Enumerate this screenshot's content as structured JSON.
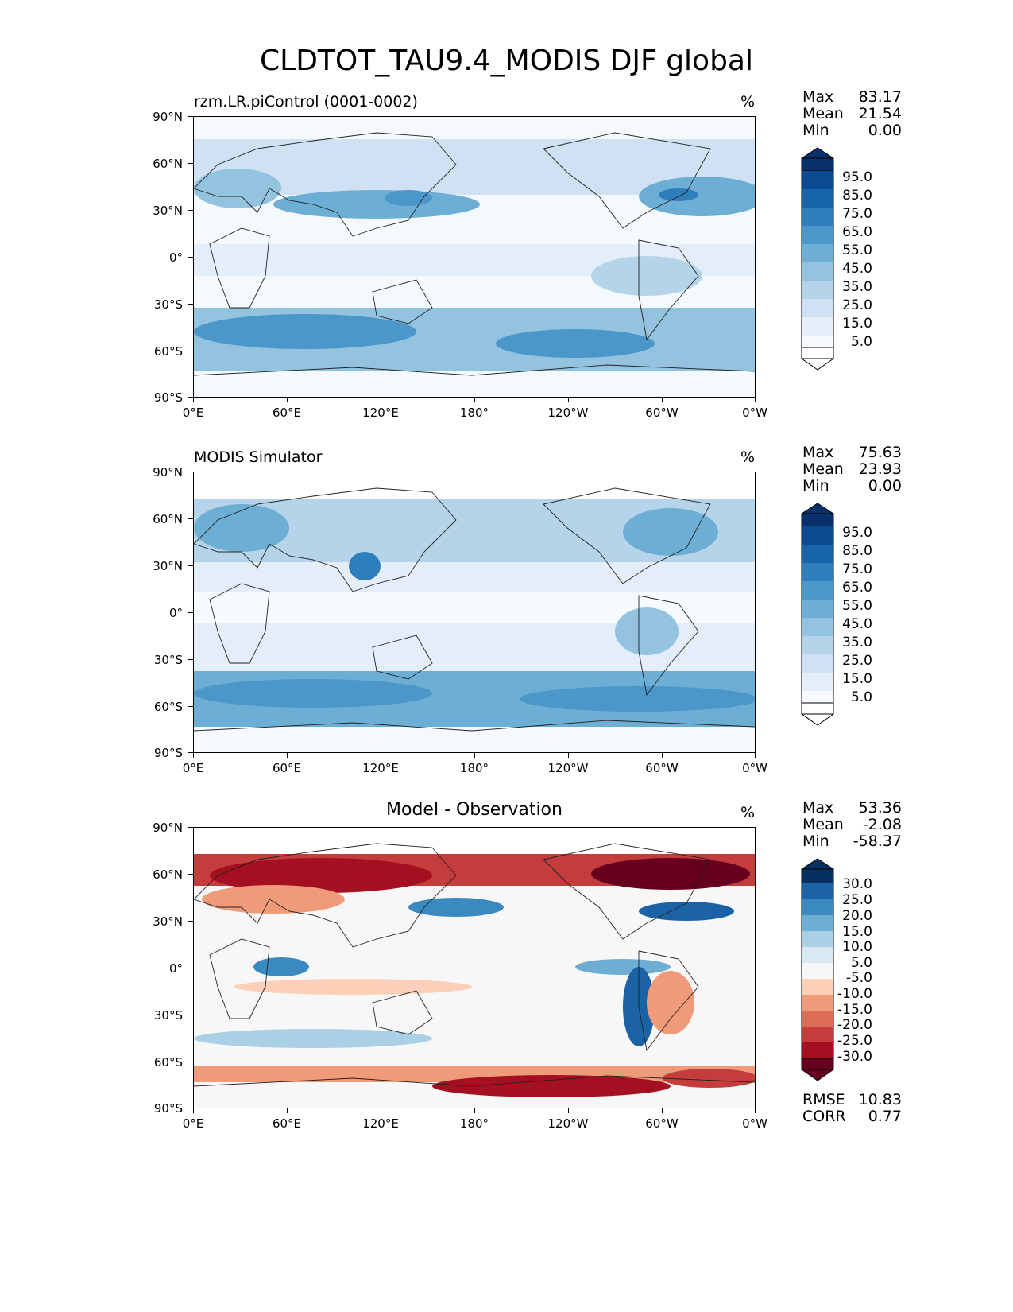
{
  "figure": {
    "title": "CLDTOT_TAU9.4_MODIS DJF global"
  },
  "panels": [
    {
      "title": "rzm.LR.piControl (0001-0002)",
      "unit": "%",
      "stats": [
        {
          "label": "Max",
          "value": "83.17"
        },
        {
          "label": "Mean",
          "value": "21.54"
        },
        {
          "label": "Min",
          "value": "0.00"
        }
      ],
      "colorbar": {
        "labels": [
          "95.0",
          "85.0",
          "75.0",
          "65.0",
          "55.0",
          "45.0",
          "35.0",
          "25.0",
          "15.0",
          "5.0"
        ]
      }
    },
    {
      "title": "MODIS Simulator",
      "unit": "%",
      "stats": [
        {
          "label": "Max",
          "value": "75.63"
        },
        {
          "label": "Mean",
          "value": "23.93"
        },
        {
          "label": "Min",
          "value": "0.00"
        }
      ],
      "colorbar": {
        "labels": [
          "95.0",
          "85.0",
          "75.0",
          "65.0",
          "55.0",
          "45.0",
          "35.0",
          "25.0",
          "15.0",
          "5.0"
        ]
      }
    },
    {
      "title": "Model - Observation",
      "unit": "%",
      "stats": [
        {
          "label": "Max",
          "value": "53.36"
        },
        {
          "label": "Mean",
          "value": "-2.08"
        },
        {
          "label": "Min",
          "value": "-58.37"
        }
      ],
      "colorbar": {
        "labels": [
          "30.0",
          "25.0",
          "20.0",
          "15.0",
          "10.0",
          "5.0",
          "-5.0",
          "-10.0",
          "-15.0",
          "-20.0",
          "-25.0",
          "-30.0"
        ]
      },
      "extra_stats": [
        {
          "label": "RMSE",
          "value": "10.83"
        },
        {
          "label": "CORR",
          "value": "0.77"
        }
      ]
    }
  ],
  "axes": {
    "lat_labels": [
      "90°N",
      "60°N",
      "30°N",
      "0°",
      "30°S",
      "60°S",
      "90°S"
    ],
    "lon_labels": [
      "0°E",
      "60°E",
      "120°E",
      "180°",
      "120°W",
      "60°W",
      "0°W"
    ]
  },
  "colors": {
    "blues": [
      "#f7fbff",
      "#e3eef9",
      "#cfe1f2",
      "#b5d4e9",
      "#93c3df",
      "#6daed5",
      "#4b97c9",
      "#2f7ebc",
      "#1864aa",
      "#0a4a90",
      "#08306b"
    ],
    "rdbu": [
      "#67001f",
      "#a50f22",
      "#c43c3c",
      "#dc6e57",
      "#ef9b7a",
      "#fbcfb8",
      "#f7f7f7",
      "#d8e9f1",
      "#a9d0e5",
      "#6faed3",
      "#3a89c1",
      "#1b63a6",
      "#053061"
    ]
  }
}
